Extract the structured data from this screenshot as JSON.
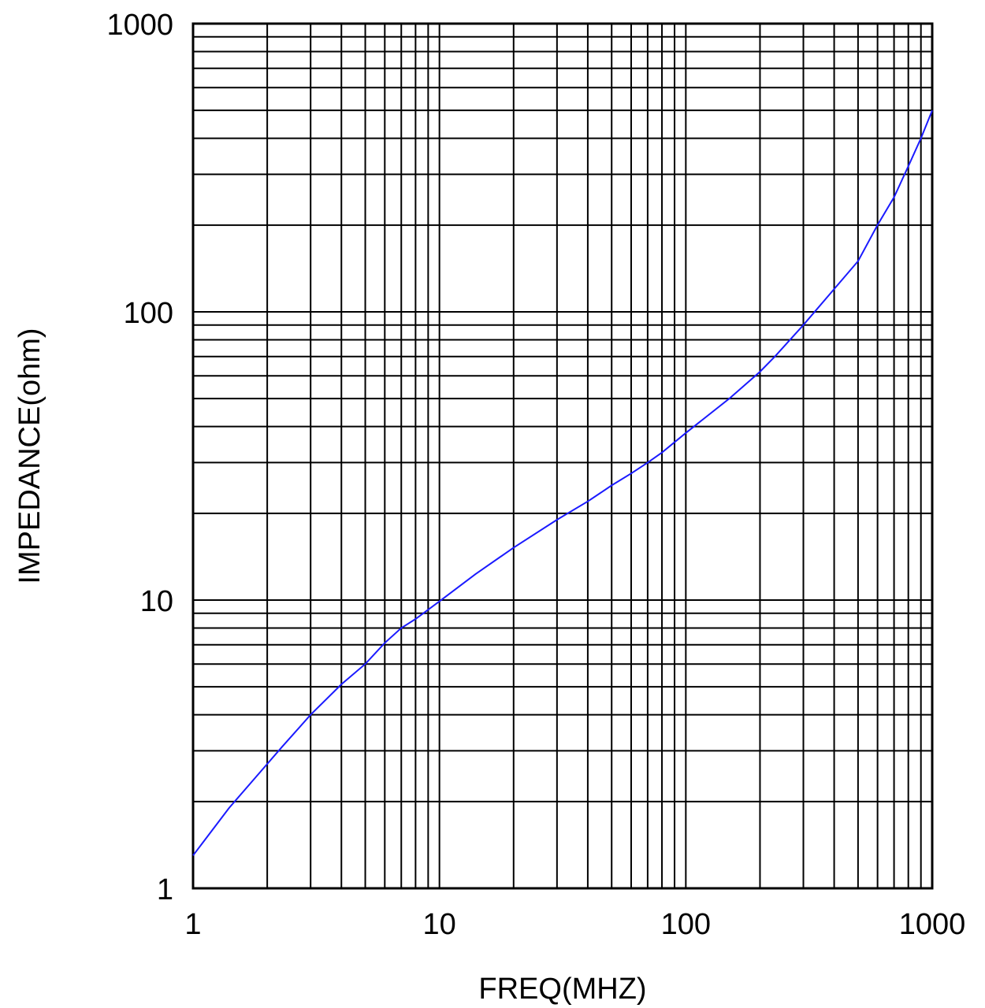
{
  "chart_data": {
    "type": "line",
    "title": "",
    "xlabel": "FREQ(MHZ)",
    "ylabel": "IMPEDANCE(ohm)",
    "x_scale": "log",
    "y_scale": "log",
    "xlim": [
      1,
      1000
    ],
    "ylim": [
      1,
      1000
    ],
    "x_tick_labels": [
      "1",
      "10",
      "100",
      "1000"
    ],
    "y_tick_labels": [
      "1",
      "10",
      "100",
      "1000"
    ],
    "grid": true,
    "line_color": "#1a1aff",
    "grid_color": "#000000",
    "series": [
      {
        "x": [
          1,
          1.4,
          2,
          2.3,
          3,
          4,
          5,
          6,
          7,
          8,
          10,
          14,
          20,
          30,
          40,
          50,
          60,
          70,
          80,
          100,
          150,
          200,
          230,
          300,
          400,
          500,
          600,
          700,
          800,
          900,
          1000
        ],
        "y": [
          1.3,
          1.9,
          2.7,
          3.1,
          4.0,
          5.1,
          6.0,
          7.1,
          8.0,
          8.6,
          9.9,
          12.3,
          15.2,
          19.0,
          22.0,
          25.0,
          27.5,
          30.0,
          32.5,
          38.0,
          50.0,
          62.0,
          70.0,
          90.0,
          120.0,
          150.0,
          200.0,
          250.0,
          320.0,
          400.0,
          500.0
        ]
      }
    ]
  }
}
